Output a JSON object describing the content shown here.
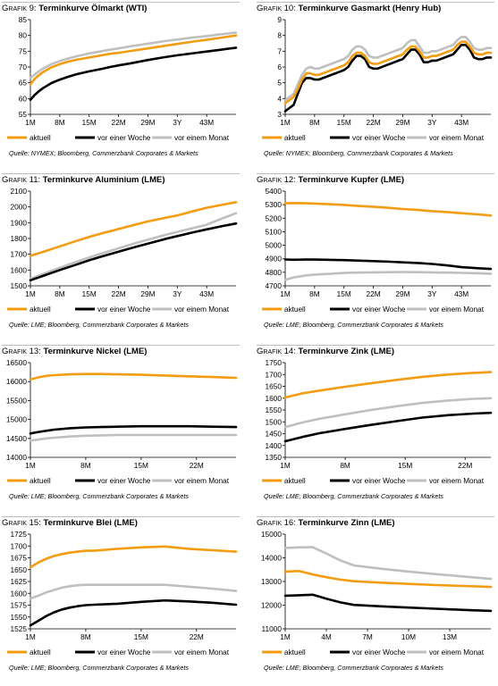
{
  "colors": {
    "aktuell": "#f39c12",
    "vor_einer_woche": "#000000",
    "vor_einem_monat": "#bfbfbf"
  },
  "source_label": "Quelle:",
  "legend": [
    "aktuell",
    "vor einer Woche",
    "vor einem Monat"
  ],
  "chart_data": [
    {
      "type": "line",
      "prefix": "Grafik 9:",
      "title": "Terminkurve Ölmarkt (WTI)",
      "source": "NYMEX; Bloomberg, Commerzbank Corporates & Markets",
      "ylim": [
        55,
        85
      ],
      "yticks": [
        55,
        60,
        65,
        70,
        75,
        80,
        85
      ],
      "xlim": [
        1,
        50
      ],
      "xticks": [
        1,
        8,
        15,
        22,
        29,
        36,
        43
      ],
      "xtick_labels": [
        "1M",
        "8M",
        "15M",
        "22M",
        "29M",
        "3Y",
        "43M"
      ],
      "x": [
        1,
        2,
        3,
        4,
        6,
        8,
        10,
        12,
        15,
        18,
        20,
        22,
        25,
        29,
        33,
        36,
        40,
        43,
        46,
        50
      ],
      "series": [
        {
          "name": "aktuell",
          "values": [
            64.5,
            66.2,
            67.4,
            68.4,
            69.9,
            70.9,
            71.7,
            72.3,
            73.0,
            73.7,
            74.2,
            74.5,
            75.1,
            75.9,
            76.7,
            77.3,
            78.1,
            78.6,
            79.2,
            80.0
          ]
        },
        {
          "name": "vor einer Woche",
          "values": [
            59.6,
            61.1,
            62.3,
            63.3,
            64.9,
            66.0,
            66.9,
            67.7,
            68.6,
            69.4,
            70.0,
            70.5,
            71.2,
            72.2,
            73.1,
            73.7,
            74.4,
            74.9,
            75.4,
            76.1
          ]
        },
        {
          "name": "vor einem Monat",
          "values": [
            66.5,
            67.6,
            68.6,
            69.5,
            70.9,
            71.9,
            72.7,
            73.4,
            74.3,
            75.0,
            75.5,
            75.9,
            76.6,
            77.4,
            78.2,
            78.7,
            79.4,
            79.8,
            80.3,
            80.9
          ]
        }
      ]
    },
    {
      "type": "line",
      "prefix": "Grafik 10:",
      "title": "Terminkurve Gasmarkt (Henry Hub)",
      "source": "NYMEX; Bloomberg, Commerzbank Corporates & Markets",
      "ylim": [
        3,
        9
      ],
      "yticks": [
        3,
        4,
        5,
        6,
        7,
        8,
        9
      ],
      "xlim": [
        1,
        50
      ],
      "xticks": [
        1,
        8,
        15,
        22,
        29,
        36,
        43
      ],
      "xtick_labels": [
        "1M",
        "8M",
        "15M",
        "22M",
        "29M",
        "3Y",
        "43M"
      ],
      "x": [
        1,
        2,
        3,
        4,
        5,
        6,
        7,
        8,
        9,
        10,
        11,
        12,
        13,
        14,
        15,
        16,
        17,
        18,
        19,
        20,
        21,
        22,
        23,
        24,
        25,
        26,
        27,
        28,
        29,
        30,
        31,
        32,
        33,
        34,
        35,
        36,
        37,
        38,
        39,
        40,
        41,
        42,
        43,
        44,
        45,
        46,
        47,
        48,
        49,
        50
      ],
      "series": [
        {
          "name": "aktuell",
          "values": [
            3.7,
            3.9,
            4.1,
            4.6,
            5.2,
            5.6,
            5.6,
            5.5,
            5.5,
            5.6,
            5.7,
            5.8,
            5.9,
            6.0,
            6.1,
            6.3,
            6.7,
            6.9,
            6.9,
            6.7,
            6.3,
            6.2,
            6.2,
            6.3,
            6.4,
            6.5,
            6.6,
            6.7,
            6.8,
            7.1,
            7.3,
            7.3,
            7.0,
            6.6,
            6.6,
            6.7,
            6.7,
            6.8,
            6.9,
            7.0,
            7.1,
            7.4,
            7.6,
            7.6,
            7.3,
            6.9,
            6.8,
            6.8,
            6.9,
            6.9
          ]
        },
        {
          "name": "vor einer Woche",
          "values": [
            3.2,
            3.4,
            3.6,
            4.3,
            5.0,
            5.3,
            5.3,
            5.2,
            5.2,
            5.3,
            5.4,
            5.5,
            5.6,
            5.7,
            5.8,
            6.0,
            6.4,
            6.7,
            6.7,
            6.5,
            6.0,
            5.9,
            5.9,
            6.0,
            6.1,
            6.2,
            6.3,
            6.4,
            6.5,
            6.8,
            7.1,
            7.1,
            6.8,
            6.3,
            6.3,
            6.4,
            6.4,
            6.5,
            6.6,
            6.7,
            6.8,
            7.1,
            7.4,
            7.4,
            7.1,
            6.6,
            6.5,
            6.5,
            6.6,
            6.6
          ]
        },
        {
          "name": "vor einem Monat",
          "values": [
            3.9,
            4.1,
            4.3,
            4.9,
            5.5,
            5.9,
            6.0,
            5.9,
            5.9,
            6.0,
            6.1,
            6.2,
            6.3,
            6.4,
            6.5,
            6.7,
            7.1,
            7.3,
            7.3,
            7.1,
            6.7,
            6.6,
            6.6,
            6.7,
            6.8,
            6.9,
            7.0,
            7.1,
            7.2,
            7.5,
            7.7,
            7.7,
            7.3,
            6.9,
            6.9,
            7.0,
            7.0,
            7.1,
            7.2,
            7.3,
            7.4,
            7.7,
            7.9,
            7.9,
            7.6,
            7.2,
            7.1,
            7.1,
            7.2,
            7.2
          ]
        }
      ]
    },
    {
      "type": "line",
      "prefix": "Grafik 11:",
      "title": "Terminkurve Aluminium (LME)",
      "source": "LME; Bloomberg, Commerzbank Corporates & Markets",
      "ylim": [
        1500,
        2100
      ],
      "yticks": [
        1500,
        1600,
        1700,
        1800,
        1900,
        2000,
        2100
      ],
      "xlim": [
        1,
        50
      ],
      "xticks": [
        1,
        8,
        15,
        22,
        29,
        36,
        43
      ],
      "xtick_labels": [
        "1M",
        "8M",
        "15M",
        "22M",
        "29M",
        "3Y",
        "43M"
      ],
      "x": [
        1,
        4,
        8,
        12,
        15,
        18,
        22,
        26,
        29,
        33,
        36,
        40,
        43,
        47,
        50
      ],
      "series": [
        {
          "name": "aktuell",
          "values": [
            1690,
            1715,
            1750,
            1785,
            1810,
            1832,
            1860,
            1888,
            1908,
            1930,
            1946,
            1975,
            1995,
            2015,
            2030
          ]
        },
        {
          "name": "vor einer Woche",
          "values": [
            1535,
            1563,
            1600,
            1635,
            1662,
            1686,
            1716,
            1746,
            1768,
            1796,
            1815,
            1840,
            1858,
            1880,
            1895
          ]
        },
        {
          "name": "vor einem Monat",
          "values": [
            1545,
            1575,
            1615,
            1652,
            1680,
            1705,
            1738,
            1770,
            1792,
            1822,
            1842,
            1868,
            1887,
            1930,
            1960
          ]
        }
      ]
    },
    {
      "type": "line",
      "prefix": "Grafik 12:",
      "title": "Terminkurve Kupfer (LME)",
      "source": "LME; Bloomberg, Commerzbank Corporates & Markets",
      "ylim": [
        4700,
        5400
      ],
      "yticks": [
        4700,
        4800,
        4900,
        5000,
        5100,
        5200,
        5300,
        5400
      ],
      "xlim": [
        1,
        50
      ],
      "xticks": [
        1,
        8,
        15,
        22,
        29,
        36,
        43
      ],
      "xtick_labels": [
        "1M",
        "8M",
        "15M",
        "22M",
        "29M",
        "3Y",
        "43M"
      ],
      "x": [
        1,
        3,
        6,
        8,
        12,
        15,
        18,
        22,
        26,
        29,
        33,
        36,
        40,
        43,
        47,
        50
      ],
      "series": [
        {
          "name": "aktuell",
          "values": [
            5310,
            5312,
            5310,
            5308,
            5303,
            5298,
            5292,
            5285,
            5276,
            5268,
            5260,
            5252,
            5244,
            5237,
            5228,
            5220
          ]
        },
        {
          "name": "vor einer Woche",
          "values": [
            4895,
            4893,
            4895,
            4894,
            4892,
            4890,
            4887,
            4883,
            4878,
            4874,
            4868,
            4862,
            4850,
            4838,
            4830,
            4825
          ]
        },
        {
          "name": "vor einem Monat",
          "values": [
            4745,
            4762,
            4777,
            4783,
            4790,
            4795,
            4798,
            4800,
            4801,
            4802,
            4801,
            4800,
            4798,
            4796,
            4793,
            4790
          ]
        }
      ]
    },
    {
      "type": "line",
      "prefix": "Grafik 13:",
      "title": "Terminkurve Nickel (LME)",
      "source": "LME; Bloomberg, Commerzbank Corporates & Markets",
      "ylim": [
        14000,
        16500
      ],
      "yticks": [
        14000,
        14500,
        15000,
        15500,
        16000,
        16500
      ],
      "xlim": [
        1,
        27
      ],
      "xticks": [
        1,
        8,
        15,
        22
      ],
      "xtick_labels": [
        "1M",
        "8M",
        "15M",
        "22M"
      ],
      "x": [
        1,
        2,
        3,
        4,
        6,
        8,
        10,
        12,
        15,
        18,
        21,
        24,
        27
      ],
      "series": [
        {
          "name": "aktuell",
          "values": [
            16060,
            16110,
            16150,
            16170,
            16190,
            16200,
            16200,
            16190,
            16180,
            16160,
            16140,
            16120,
            16100
          ]
        },
        {
          "name": "vor einer Woche",
          "values": [
            14630,
            14670,
            14700,
            14730,
            14770,
            14790,
            14800,
            14810,
            14820,
            14820,
            14820,
            14810,
            14800
          ]
        },
        {
          "name": "vor einem Monat",
          "values": [
            14440,
            14470,
            14500,
            14520,
            14550,
            14570,
            14580,
            14590,
            14590,
            14590,
            14590,
            14590,
            14590
          ]
        }
      ]
    },
    {
      "type": "line",
      "prefix": "Grafik 14:",
      "title": "Terminkurve Zink (LME)",
      "source": "LME; Bloomberg, Commerzbank Corporates & Markets",
      "ylim": [
        1350,
        1750
      ],
      "yticks": [
        1350,
        1400,
        1450,
        1500,
        1550,
        1600,
        1650,
        1700,
        1750
      ],
      "xlim": [
        1,
        25
      ],
      "xticks": [
        1,
        8,
        15,
        22
      ],
      "xtick_labels": [
        "1M",
        "8M",
        "15M",
        "22M"
      ],
      "x": [
        1,
        3,
        5,
        8,
        11,
        14,
        17,
        20,
        23,
        25
      ],
      "series": [
        {
          "name": "aktuell",
          "values": [
            1603,
            1620,
            1632,
            1648,
            1663,
            1677,
            1690,
            1700,
            1707,
            1710
          ]
        },
        {
          "name": "vor einer Woche",
          "values": [
            1418,
            1436,
            1452,
            1470,
            1487,
            1503,
            1518,
            1528,
            1535,
            1538
          ]
        },
        {
          "name": "vor einem Monat",
          "values": [
            1478,
            1497,
            1513,
            1532,
            1550,
            1566,
            1580,
            1590,
            1597,
            1600
          ]
        }
      ]
    },
    {
      "type": "line",
      "prefix": "Grafik 15:",
      "title": "Terminkurve Blei (LME)",
      "source": "LME; Bloomberg, Commerzbank Corporates & Markets",
      "ylim": [
        1525,
        1725
      ],
      "yticks": [
        1525,
        1550,
        1575,
        1600,
        1625,
        1650,
        1675,
        1700,
        1725
      ],
      "xlim": [
        1,
        27
      ],
      "xticks": [
        1,
        8,
        15,
        22
      ],
      "xtick_labels": [
        "1M",
        "8M",
        "15M",
        "22M"
      ],
      "x": [
        1,
        2,
        3,
        4,
        5,
        6,
        7,
        8,
        9,
        12,
        15,
        18,
        21,
        24,
        27
      ],
      "series": [
        {
          "name": "aktuell",
          "values": [
            1655,
            1665,
            1673,
            1679,
            1683,
            1686,
            1688,
            1690,
            1690,
            1694,
            1697,
            1699,
            1694,
            1691,
            1688
          ]
        },
        {
          "name": "vor einer Woche",
          "values": [
            1532,
            1542,
            1552,
            1560,
            1566,
            1570,
            1573,
            1575,
            1576,
            1578,
            1582,
            1585,
            1583,
            1580,
            1576
          ]
        },
        {
          "name": "vor einem Monat",
          "values": [
            1589,
            1595,
            1602,
            1607,
            1612,
            1615,
            1617,
            1618,
            1618,
            1618,
            1618,
            1618,
            1614,
            1610,
            1605
          ]
        }
      ]
    },
    {
      "type": "line",
      "prefix": "Grafik 16:",
      "title": "Terminkurve Zinn (LME)",
      "source": "LME; Bloomberg, Commerzbank Corporates & Markets",
      "ylim": [
        11000,
        15000
      ],
      "yticks": [
        11000,
        12000,
        13000,
        14000,
        15000
      ],
      "xlim": [
        1,
        16
      ],
      "xticks": [
        1,
        4,
        7,
        10,
        13
      ],
      "xtick_labels": [
        "1M",
        "4M",
        "7M",
        "10M",
        "13M"
      ],
      "x": [
        1,
        2,
        3,
        4,
        5,
        6,
        8,
        10,
        12,
        14,
        16
      ],
      "series": [
        {
          "name": "aktuell",
          "values": [
            13420,
            13440,
            13300,
            13180,
            13080,
            13010,
            12950,
            12900,
            12850,
            12810,
            12770
          ]
        },
        {
          "name": "vor einer Woche",
          "values": [
            12400,
            12420,
            12440,
            12270,
            12120,
            12010,
            11950,
            11900,
            11850,
            11800,
            11760
          ]
        },
        {
          "name": "vor einem Monat",
          "values": [
            14420,
            14440,
            14450,
            14180,
            13900,
            13680,
            13540,
            13420,
            13310,
            13210,
            13110
          ]
        }
      ]
    }
  ]
}
